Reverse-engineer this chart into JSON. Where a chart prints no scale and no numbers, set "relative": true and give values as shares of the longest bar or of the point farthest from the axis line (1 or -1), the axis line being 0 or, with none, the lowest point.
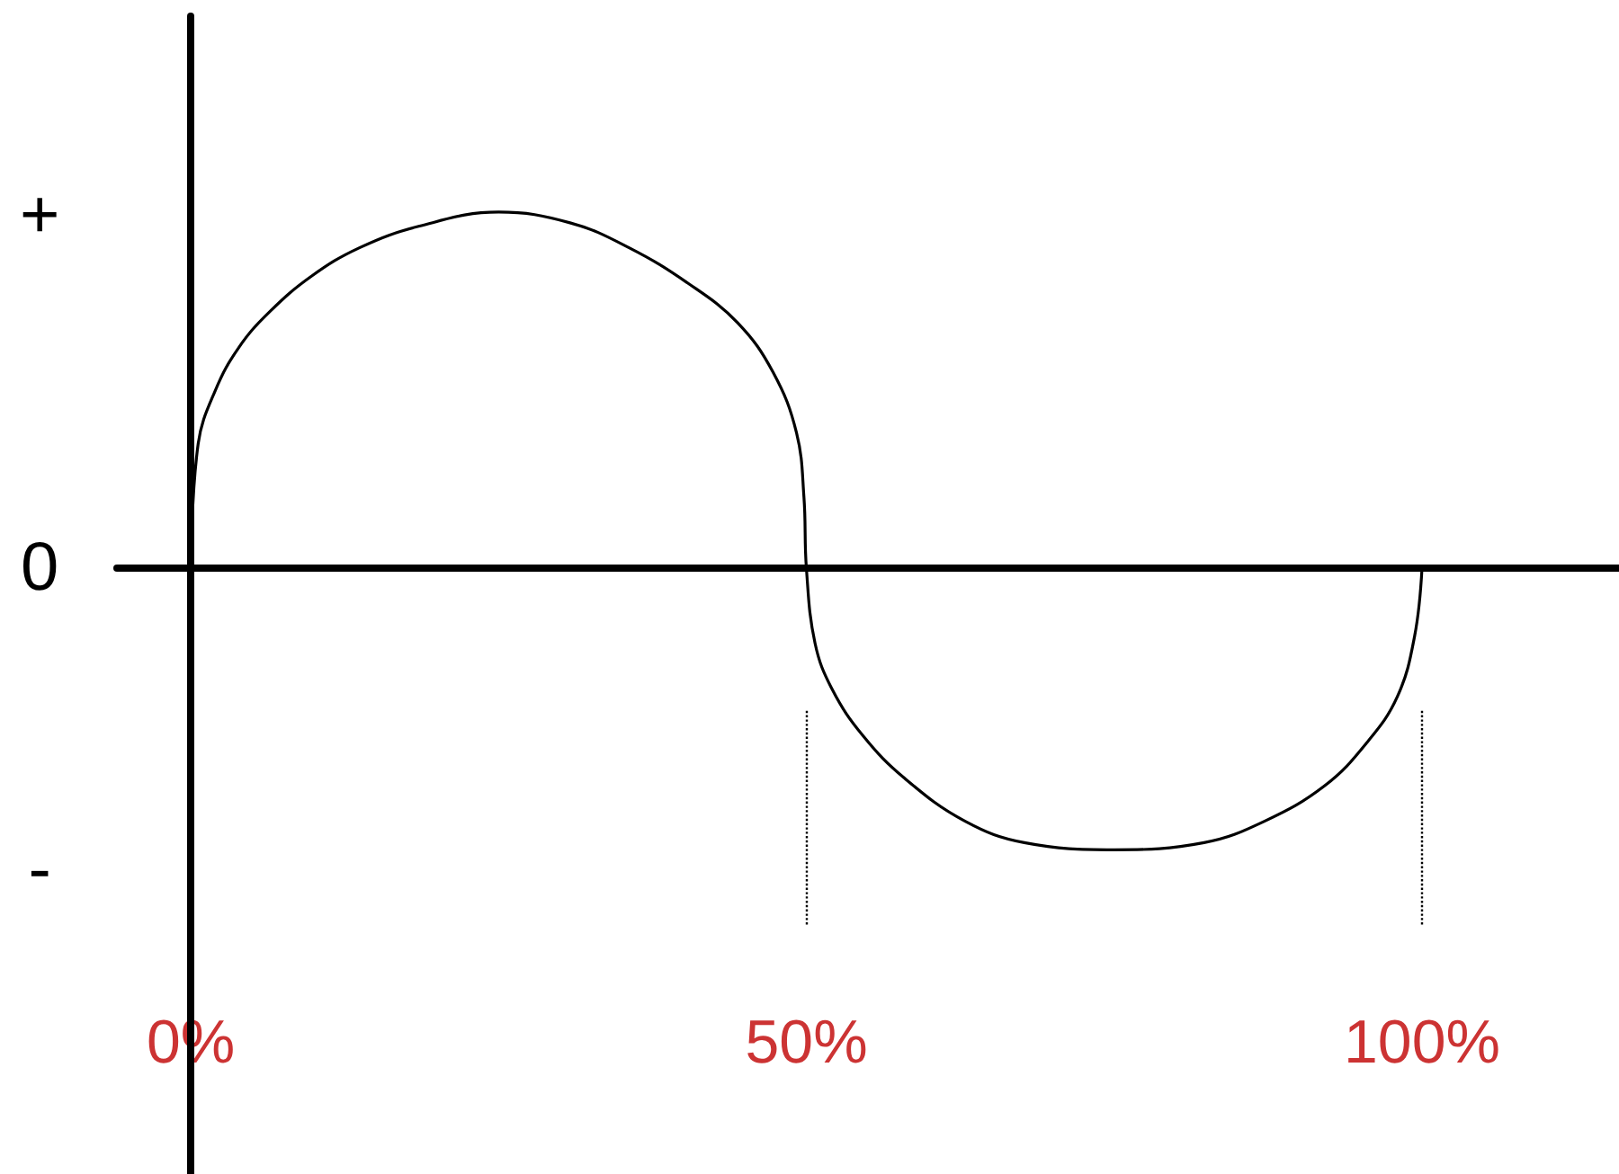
{
  "chart_data": {
    "type": "line",
    "relative": true,
    "x": [
      0,
      0.6,
      2,
      3.9,
      6.4,
      9.8,
      13.7,
      18.5,
      25,
      30.8,
      35.6,
      40.4,
      44.4,
      47.3,
      49.2,
      49.8,
      50,
      50.7,
      52.1,
      54.6,
      58,
      62.9,
      67.7,
      75,
      82.3,
      87.2,
      92.1,
      95.5,
      98,
      99.4,
      100
    ],
    "series": [
      {
        "color": "#000000",
        "values": [
          0,
          0.35,
          0.5,
          0.62,
          0.72,
          0.82,
          0.9,
          0.96,
          1,
          0.97,
          0.9,
          0.8,
          0.69,
          0.55,
          0.38,
          0.2,
          0,
          -0.21,
          -0.34,
          -0.47,
          -0.59,
          -0.71,
          -0.77,
          -0.79,
          -0.77,
          -0.71,
          -0.61,
          -0.49,
          -0.36,
          -0.19,
          0
        ]
      }
    ],
    "xlim": [
      -6,
      116
    ],
    "xticks": [
      {
        "value": 0,
        "label": "0%"
      },
      {
        "value": 50,
        "label": "50%"
      },
      {
        "value": 100,
        "label": "100%"
      }
    ],
    "annotations": [
      "+",
      "0",
      "-"
    ],
    "ref_lines": [
      {
        "axis": "x",
        "value": 50,
        "color": "#000000",
        "line_style": "dotted"
      },
      {
        "axis": "x",
        "value": 100,
        "color": "#000000",
        "line_style": "dotted"
      }
    ],
    "marker": "none",
    "line_style": "solid"
  }
}
